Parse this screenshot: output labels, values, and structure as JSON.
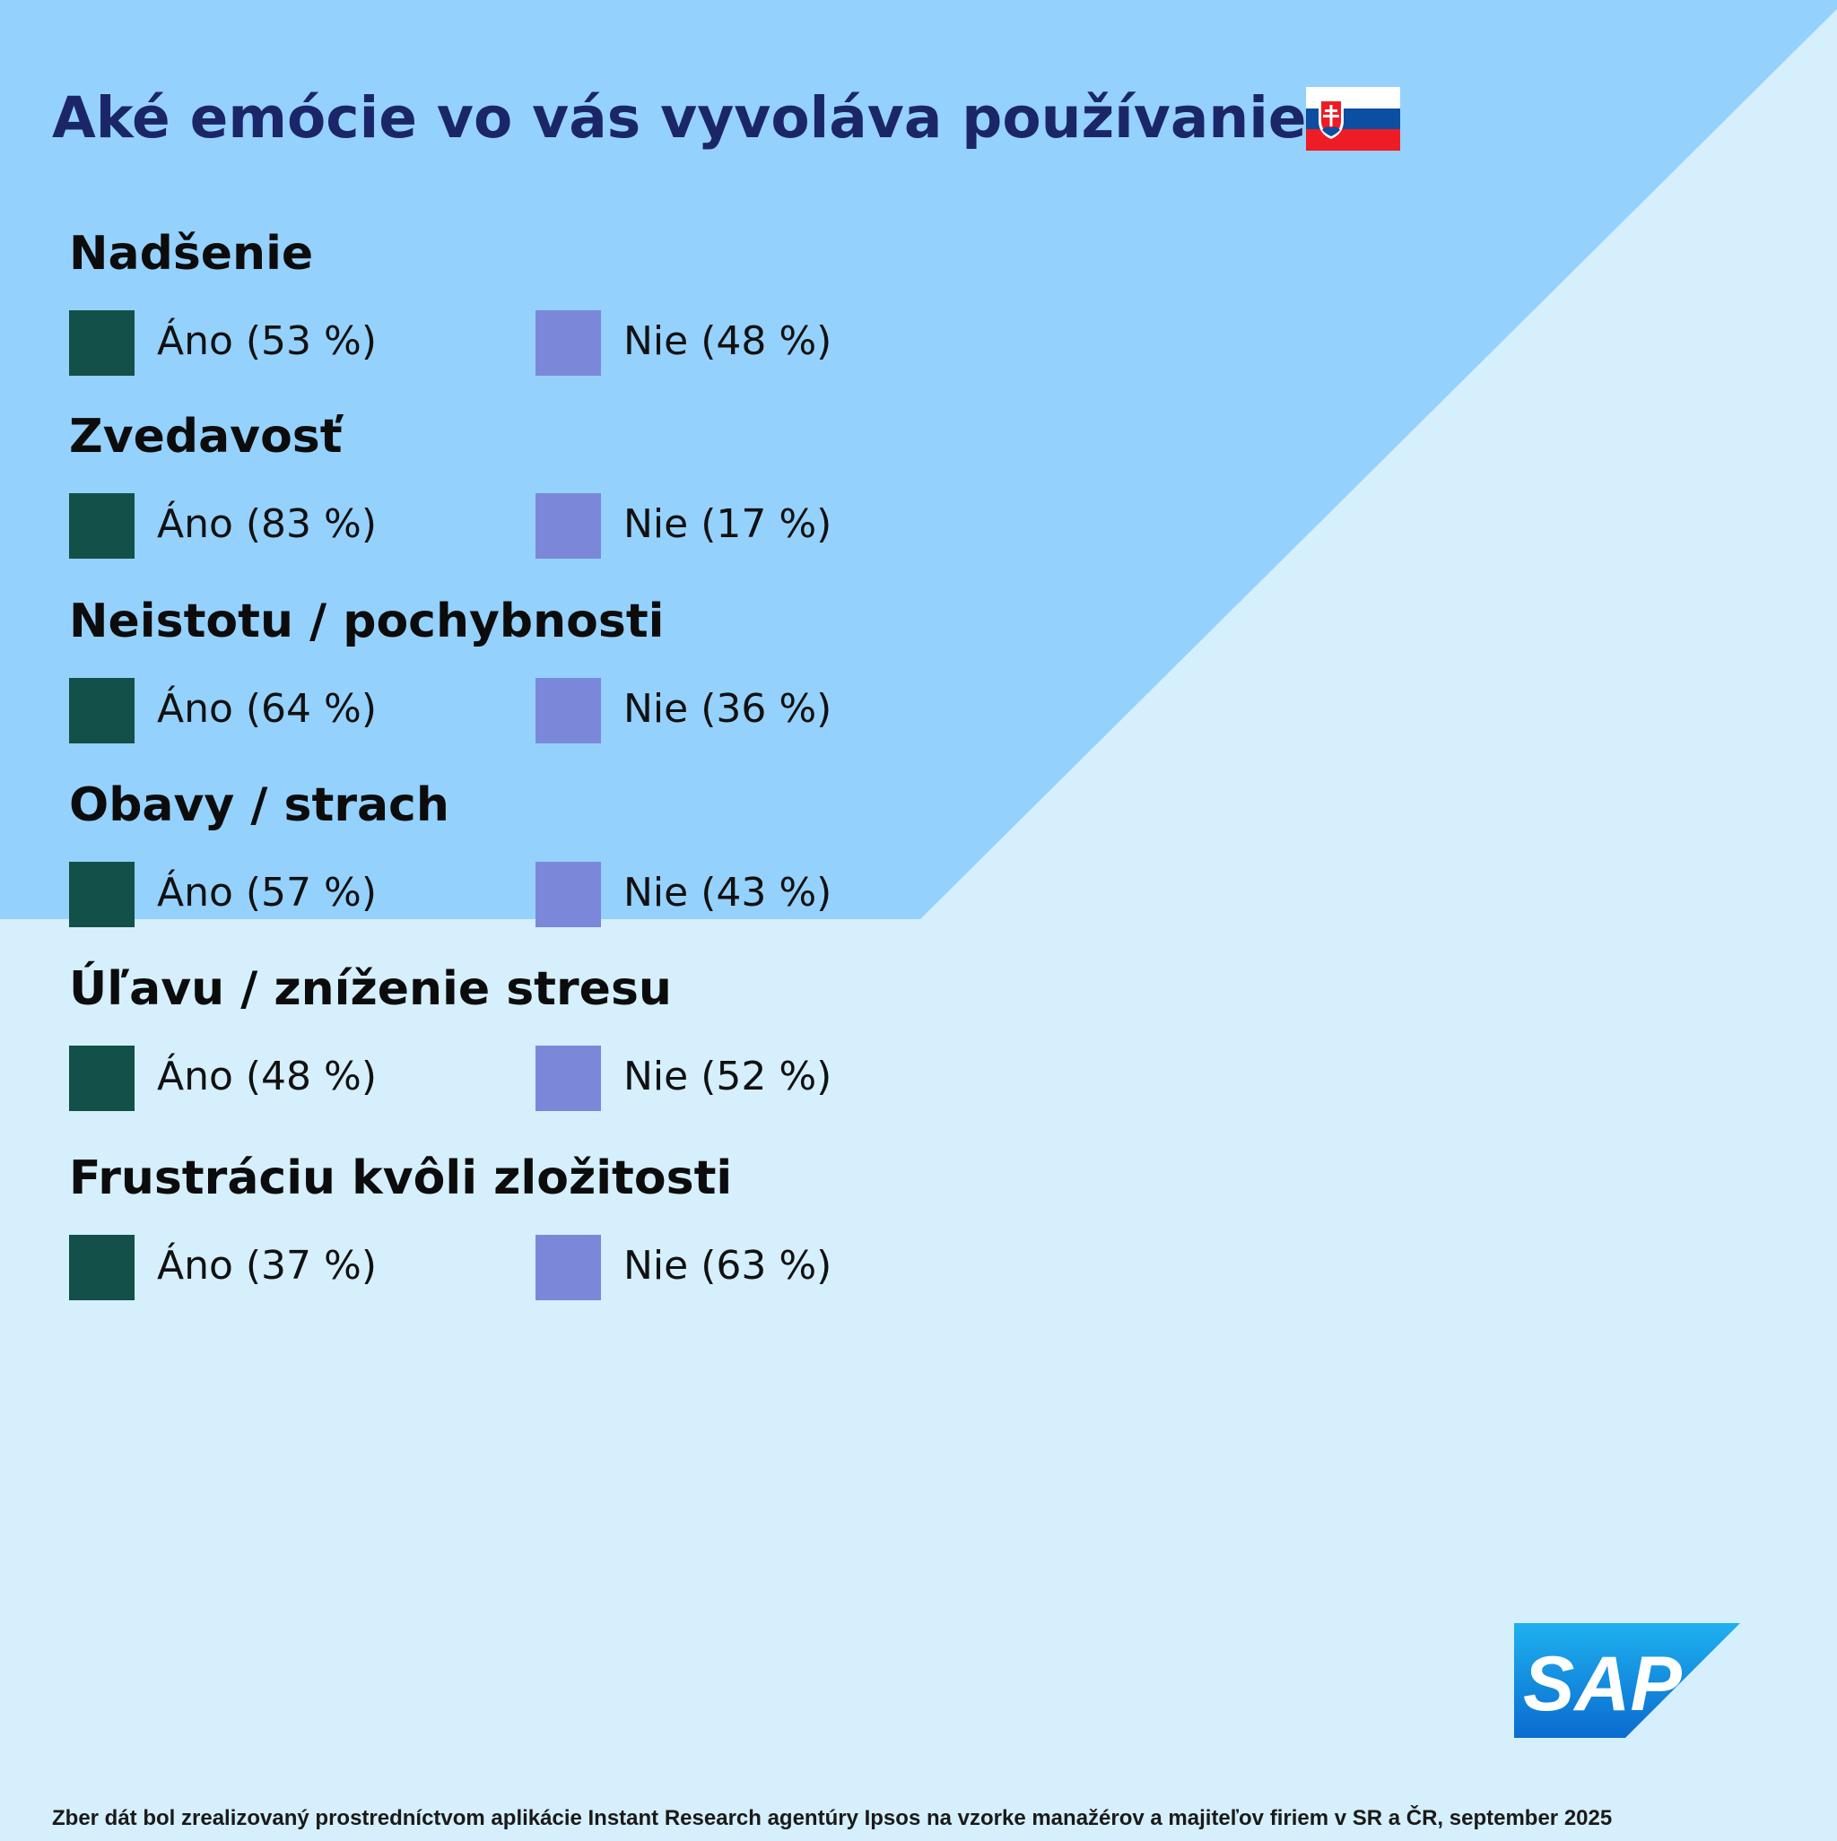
{
  "title": "Aké emócie vo vás vyvoláva používanie AI",
  "footer": "Zber dát bol zrealizovaný prostredníctvom aplikácie Instant Research agentúry Ipsos na vzorke manažérov a majiteľov firiem v SR a ČR, september 2025",
  "logo_text": "SAP",
  "flag_icon": "slovakia-flag-icon",
  "colors": {
    "background_light": "#d5effc",
    "background_accent": "#95d1fd",
    "title": "#1b2668",
    "ano": "#13504a",
    "nie": "#7b88da"
  },
  "chart_data": {
    "type": "table",
    "title": "Aké emócie vo vás vyvoláva používanie AI",
    "series": [
      {
        "name": "Áno",
        "color": "#13504a"
      },
      {
        "name": "Nie",
        "color": "#7b88da"
      }
    ],
    "groups": [
      {
        "name": "Nadšenie",
        "items": [
          {
            "series": "Áno",
            "label": "Áno (53 %)",
            "value": 53
          },
          {
            "series": "Nie",
            "label": "Nie (48 %)",
            "value": 48
          }
        ]
      },
      {
        "name": "Zvedavosť",
        "items": [
          {
            "series": "Áno",
            "label": "Áno (83 %)",
            "value": 83
          },
          {
            "series": "Nie",
            "label": "Nie (17 %)",
            "value": 17
          }
        ]
      },
      {
        "name": "Neistotu / pochybnosti",
        "items": [
          {
            "series": "Áno",
            "label": "Áno (64 %)",
            "value": 64
          },
          {
            "series": "Nie",
            "label": "Nie (36 %)",
            "value": 36
          }
        ]
      },
      {
        "name": "Obavy / strach",
        "items": [
          {
            "series": "Áno",
            "label": "Áno (57 %)",
            "value": 57
          },
          {
            "series": "Nie",
            "label": "Nie (43 %)",
            "value": 43
          }
        ]
      },
      {
        "name": "Úľavu / zníženie stresu",
        "items": [
          {
            "series": "Áno",
            "label": "Áno (48 %)",
            "value": 48
          },
          {
            "series": "Nie",
            "label": "Nie (52 %)",
            "value": 52
          }
        ]
      },
      {
        "name": "Frustráciu kvôli zložitosti",
        "items": [
          {
            "series": "Áno",
            "label": "Áno (37 %)",
            "value": 37
          },
          {
            "series": "Nie",
            "label": "Nie (63 %)",
            "value": 63
          }
        ]
      }
    ]
  }
}
